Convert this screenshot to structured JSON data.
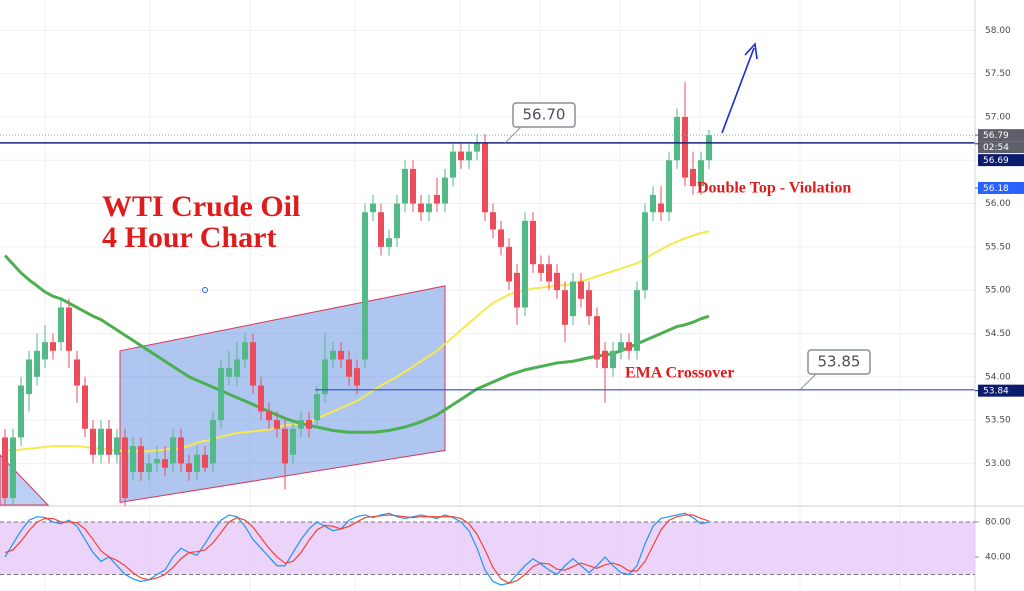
{
  "chart_data": {
    "type": "candlestick",
    "title": "WTI Crude Oil",
    "subtitle": "4 Hour Chart",
    "annotations": [
      "Double Top - Violation",
      "EMA Crossover"
    ],
    "up_color": "#53b987",
    "down_color": "#eb4d5c",
    "ylim": [
      52.52,
      58.35
    ],
    "yticks": [
      {
        "value": 53,
        "label": "53.00"
      },
      {
        "value": 53.5,
        "label": "53.50"
      },
      {
        "value": 54,
        "label": "54.00"
      },
      {
        "value": 54.5,
        "label": "54.50"
      },
      {
        "value": 55,
        "label": "55.00"
      },
      {
        "value": 55.5,
        "label": "55.50"
      },
      {
        "value": 56,
        "label": "56.00"
      },
      {
        "value": 56.5,
        "label": "56.50"
      },
      {
        "value": 57,
        "label": "57.00"
      },
      {
        "value": 57.5,
        "label": "57.50"
      },
      {
        "value": 58,
        "label": "58.00"
      }
    ],
    "grid": true,
    "open": [
      53.3,
      52.6,
      53.3,
      53.8,
      54.0,
      54.2,
      54.4,
      54.4,
      54.8,
      54.2,
      53.9,
      53.4,
      53.1,
      53.4,
      53.1,
      53.3,
      52.9,
      53.2,
      52.9,
      53.0,
      53.05,
      53.0,
      53.3,
      53.0,
      52.9,
      53.1,
      53.0,
      53.5,
      54.0,
      54.0,
      54.2,
      54.4,
      53.9,
      53.6,
      53.5,
      53.4,
      53.1,
      53.4,
      53.5,
      53.5,
      53.8,
      54.2,
      54.3,
      54.2,
      54.1,
      54.2,
      55.9,
      55.9,
      55.5,
      55.6,
      56.0,
      56.4,
      56.0,
      55.9,
      56.1,
      56.0,
      56.3,
      56.6,
      56.5,
      56.6,
      56.7,
      55.9,
      55.7,
      55.5,
      55.2,
      54.8,
      55.8,
      55.3,
      55.3,
      55.2,
      55.0,
      54.7,
      55.1,
      55.0,
      54.7,
      54.3,
      54.1,
      54.3,
      54.4,
      54.3,
      55.0,
      55.9,
      56.0,
      55.9,
      56.5,
      57.0,
      56.4,
      56.2,
      56.5
    ],
    "high": [
      53.4,
      53.4,
      54.0,
      54.3,
      54.5,
      54.6,
      54.5,
      54.9,
      54.9,
      54.3,
      54.0,
      53.5,
      53.5,
      53.5,
      53.4,
      53.4,
      53.3,
      53.3,
      53.1,
      53.2,
      53.2,
      53.4,
      53.4,
      53.1,
      53.2,
      53.2,
      53.6,
      54.2,
      54.3,
      54.4,
      54.5,
      54.5,
      54.0,
      53.7,
      53.6,
      53.5,
      53.5,
      53.6,
      53.6,
      53.9,
      54.5,
      54.4,
      54.4,
      54.3,
      54.2,
      56.0,
      56.1,
      56.0,
      55.7,
      56.1,
      56.5,
      56.5,
      56.1,
      56.1,
      56.3,
      56.4,
      56.7,
      56.7,
      56.7,
      56.8,
      56.8,
      56.0,
      55.8,
      55.6,
      55.3,
      55.9,
      55.9,
      55.4,
      55.4,
      55.3,
      55.1,
      55.2,
      55.2,
      55.1,
      54.8,
      54.4,
      54.4,
      54.5,
      54.5,
      55.1,
      56.0,
      56.2,
      56.2,
      56.6,
      57.1,
      57.4,
      56.6,
      56.6,
      56.85
    ],
    "low": [
      52.5,
      52.5,
      53.2,
      53.6,
      53.9,
      54.1,
      54.2,
      54.3,
      54.1,
      53.7,
      53.3,
      53.0,
      53.0,
      53.0,
      53.0,
      52.5,
      52.8,
      52.8,
      52.8,
      52.9,
      52.85,
      52.9,
      52.9,
      52.8,
      52.8,
      52.9,
      52.9,
      53.4,
      53.9,
      53.9,
      54.1,
      53.8,
      53.5,
      53.4,
      53.3,
      52.7,
      53.0,
      53.3,
      53.3,
      53.4,
      53.7,
      54.1,
      54.1,
      53.9,
      53.8,
      54.1,
      55.8,
      55.4,
      55.4,
      55.5,
      55.9,
      55.9,
      55.8,
      55.8,
      55.9,
      55.9,
      56.2,
      56.4,
      56.4,
      56.5,
      55.8,
      55.6,
      55.4,
      55.0,
      54.6,
      54.7,
      55.2,
      55.1,
      55.0,
      54.9,
      54.4,
      54.6,
      54.8,
      54.6,
      54.1,
      53.7,
      54.0,
      54.2,
      54.2,
      54.2,
      54.9,
      55.8,
      55.8,
      55.8,
      56.4,
      56.2,
      56.1,
      56.1,
      56.4
    ],
    "close": [
      52.6,
      53.3,
      53.9,
      54.2,
      54.3,
      54.4,
      54.3,
      54.8,
      54.3,
      53.9,
      53.4,
      53.1,
      53.4,
      53.1,
      53.3,
      52.6,
      53.2,
      52.9,
      53.0,
      53.05,
      52.95,
      53.3,
      53.0,
      52.9,
      53.1,
      52.95,
      53.5,
      54.1,
      54.1,
      54.2,
      54.4,
      53.9,
      53.6,
      53.5,
      53.4,
      53.0,
      53.4,
      53.5,
      53.4,
      53.8,
      54.2,
      54.3,
      54.2,
      54.0,
      53.9,
      55.9,
      56.0,
      55.5,
      55.6,
      56.0,
      56.4,
      56.0,
      55.9,
      56.0,
      56.0,
      56.3,
      56.6,
      56.5,
      56.6,
      56.7,
      55.9,
      55.7,
      55.5,
      55.1,
      54.8,
      55.8,
      55.3,
      55.2,
      55.1,
      55.0,
      54.6,
      55.1,
      54.9,
      54.7,
      54.2,
      54.1,
      54.3,
      54.4,
      54.3,
      55.0,
      55.9,
      56.1,
      55.9,
      56.5,
      57.0,
      56.3,
      56.2,
      56.5,
      56.79
    ],
    "overlays": [
      {
        "color": "#f5e94b",
        "values": [
          53.15,
          53.15,
          53.16,
          53.17,
          53.18,
          53.19,
          53.2,
          53.2,
          53.2,
          53.2,
          53.19,
          53.18,
          53.17,
          53.16,
          53.15,
          53.14,
          53.14,
          53.14,
          53.14,
          53.15,
          53.16,
          53.17,
          53.18,
          53.2,
          53.24,
          53.26,
          53.28,
          53.31,
          53.33,
          53.35,
          53.36,
          53.37,
          53.38,
          53.39,
          53.42,
          53.44,
          53.45,
          53.46,
          53.48,
          53.52,
          53.56,
          53.6,
          53.64,
          53.68,
          53.72,
          53.78,
          53.84,
          53.9,
          53.95,
          54.0,
          54.06,
          54.12,
          54.18,
          54.24,
          54.3,
          54.38,
          54.46,
          54.54,
          54.62,
          54.7,
          54.78,
          54.85,
          54.9,
          54.95,
          54.98,
          55.0,
          55.02,
          55.03,
          55.04,
          55.05,
          55.06,
          55.08,
          55.1,
          55.13,
          55.16,
          55.19,
          55.22,
          55.25,
          55.28,
          55.31,
          55.36,
          55.42,
          55.47,
          55.52,
          55.56,
          55.6,
          55.63,
          55.66,
          55.68
        ]
      },
      {
        "color": "#4caf50",
        "values": [
          55.4,
          55.3,
          55.2,
          55.12,
          55.05,
          54.98,
          54.93,
          54.9,
          54.85,
          54.8,
          54.75,
          54.7,
          54.66,
          54.6,
          54.54,
          54.48,
          54.42,
          54.36,
          54.3,
          54.24,
          54.18,
          54.12,
          54.06,
          54.0,
          53.96,
          53.92,
          53.88,
          53.84,
          53.8,
          53.76,
          53.72,
          53.68,
          53.64,
          53.6,
          53.56,
          53.52,
          53.49,
          53.46,
          53.44,
          53.42,
          53.4,
          53.38,
          53.37,
          53.36,
          53.36,
          53.36,
          53.36,
          53.37,
          53.38,
          53.4,
          53.42,
          53.45,
          53.48,
          53.52,
          53.56,
          53.62,
          53.68,
          53.74,
          53.8,
          53.86,
          53.9,
          53.94,
          53.98,
          54.02,
          54.05,
          54.08,
          54.1,
          54.12,
          54.14,
          54.16,
          54.17,
          54.18,
          54.2,
          54.22,
          54.24,
          54.25,
          54.27,
          54.3,
          54.34,
          54.38,
          54.42,
          54.46,
          54.5,
          54.54,
          54.58,
          54.6,
          54.63,
          54.67,
          54.7
        ]
      }
    ],
    "channel": {
      "color": "#6d97e6",
      "upper": [
        54.3,
        55.05
      ],
      "lower": [
        52.55,
        53.15
      ]
    },
    "levels": [
      {
        "value": 56.7,
        "label": "56.70",
        "color": "#1a237e"
      },
      {
        "value": 53.85,
        "label": "53.85",
        "color": "#2f4fd6"
      }
    ],
    "markers": [
      {
        "value": 56.79,
        "color": "#5d606b",
        "countdown": "02:54"
      },
      {
        "value": 56.69,
        "color": "#0d1b6e"
      },
      {
        "value": 56.18,
        "color": "#2962ff"
      },
      {
        "value": 53.84,
        "color": "#0d1b6e"
      }
    ],
    "oscillator": {
      "ylim": [
        1.1,
        97.1
      ],
      "yticks": [
        {
          "value": 40,
          "label": "40.00"
        },
        {
          "value": 80,
          "label": "80.00"
        }
      ],
      "band": [
        20,
        80
      ],
      "band_color": "#e6c8f7",
      "series": [
        {
          "color": "#2196f3",
          "values": [
            40,
            55,
            70,
            82,
            86,
            85,
            80,
            78,
            82,
            75,
            60,
            45,
            35,
            40,
            30,
            20,
            15,
            12,
            14,
            20,
            25,
            40,
            50,
            45,
            42,
            55,
            70,
            82,
            88,
            86,
            75,
            60,
            50,
            40,
            30,
            30,
            45,
            60,
            72,
            80,
            75,
            70,
            72,
            82,
            86,
            88,
            85,
            88,
            90,
            86,
            84,
            86,
            88,
            86,
            84,
            88,
            85,
            80,
            70,
            50,
            25,
            12,
            8,
            10,
            20,
            30,
            38,
            32,
            25,
            20,
            30,
            38,
            30,
            22,
            30,
            40,
            30,
            22,
            20,
            30,
            55,
            75,
            84,
            86,
            88,
            90,
            85,
            78,
            80
          ]
        },
        {
          "color": "#f44336",
          "values": [
            45,
            48,
            58,
            70,
            80,
            84,
            84,
            80,
            80,
            79,
            72,
            60,
            47,
            40,
            36,
            30,
            22,
            16,
            14,
            16,
            20,
            28,
            38,
            45,
            46,
            48,
            56,
            68,
            80,
            85,
            82,
            74,
            62,
            50,
            40,
            33,
            35,
            45,
            59,
            71,
            76,
            75,
            72,
            75,
            80,
            85,
            86,
            87,
            88,
            87,
            86,
            85,
            86,
            86,
            86,
            86,
            86,
            84,
            78,
            66,
            48,
            28,
            15,
            10,
            13,
            20,
            29,
            33,
            32,
            26,
            25,
            29,
            33,
            30,
            27,
            31,
            33,
            30,
            24,
            24,
            35,
            53,
            71,
            82,
            86,
            88,
            88,
            84,
            81
          ]
        }
      ]
    }
  }
}
